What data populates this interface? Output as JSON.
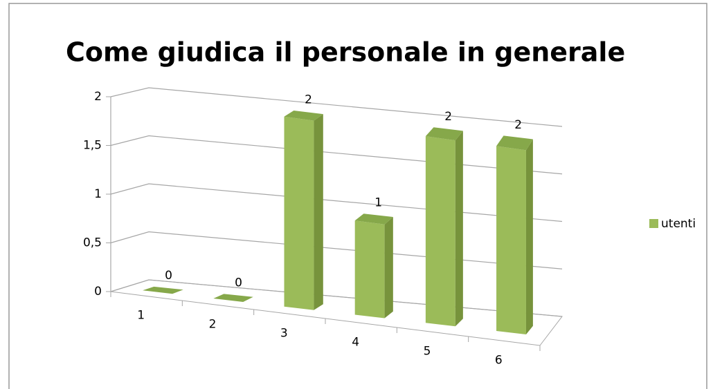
{
  "chart_data": {
    "type": "bar3d",
    "title": "Come giudica il personale in generale",
    "categories": [
      "1",
      "2",
      "3",
      "4",
      "5",
      "6"
    ],
    "series": [
      {
        "name": "utenti",
        "color": "#9bbb59",
        "values": [
          0,
          0,
          2,
          1,
          2,
          2
        ]
      }
    ],
    "ylim": [
      0,
      2
    ],
    "yticks": [
      0,
      {
        "value": 0.5,
        "label": "0,5"
      },
      1,
      {
        "value": 1.5,
        "label": "1,5"
      },
      2
    ],
    "grid": true,
    "legend": "right"
  }
}
